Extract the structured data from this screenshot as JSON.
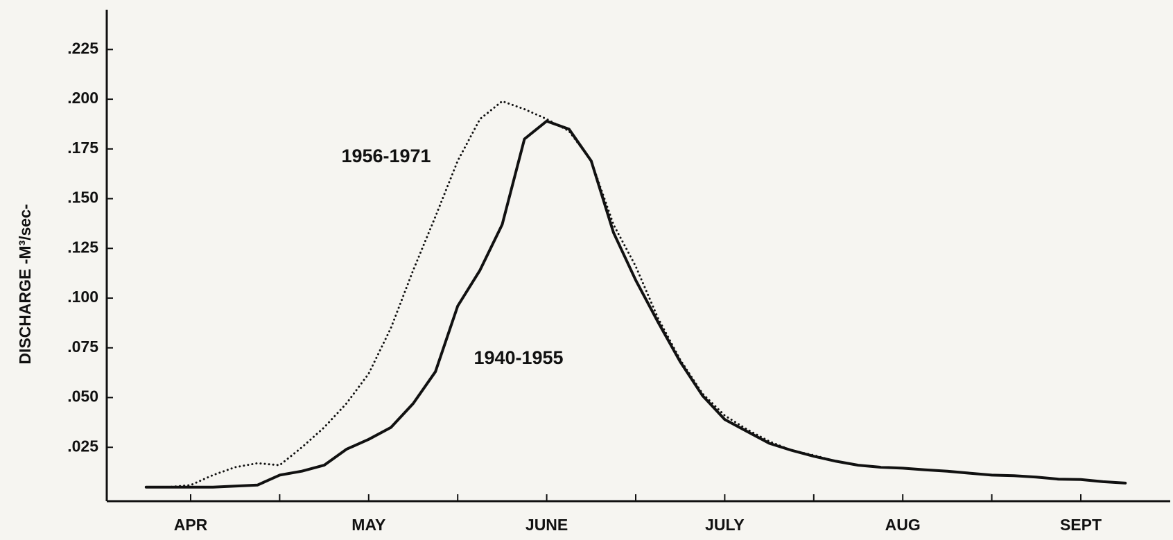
{
  "chart_data": {
    "type": "line",
    "y_label": "DISCHARGE  -M³/sec-",
    "categories": [
      null,
      null,
      "APR",
      null,
      null,
      null,
      null,
      null,
      null,
      null,
      "MAY",
      null,
      null,
      null,
      null,
      null,
      null,
      null,
      "JUNE",
      null,
      null,
      null,
      null,
      null,
      null,
      null,
      "JULY",
      null,
      null,
      null,
      null,
      null,
      null,
      null,
      "AUG",
      null,
      null,
      null,
      null,
      null,
      null,
      null,
      "SEPT",
      null,
      null
    ],
    "series": [
      {
        "name": "1940-1955",
        "color": "#111111",
        "style": "solid",
        "values": [
          0.005,
          0.005,
          0.005,
          0.005,
          0.0055,
          0.006,
          0.011,
          0.013,
          0.016,
          0.024,
          0.029,
          0.035,
          0.047,
          0.063,
          0.096,
          0.114,
          0.137,
          0.18,
          0.189,
          0.185,
          0.169,
          0.133,
          0.109,
          0.088,
          0.068,
          0.051,
          0.039,
          0.033,
          0.027,
          0.0235,
          0.0205,
          0.018,
          0.016,
          0.015,
          0.0145,
          0.0137,
          0.013,
          0.012,
          0.011,
          0.0107,
          0.01,
          0.009,
          0.0088,
          0.0077,
          0.007
        ]
      },
      {
        "name": "1956-1971",
        "color": "#111111",
        "style": "dotted",
        "values": [
          0.005,
          0.005,
          0.006,
          0.011,
          0.015,
          0.017,
          0.016,
          0.025,
          0.035,
          0.047,
          0.062,
          0.085,
          0.114,
          0.141,
          0.169,
          0.19,
          0.199,
          0.195,
          0.19,
          0.184,
          0.169,
          0.137,
          0.116,
          0.09,
          0.069,
          0.052,
          0.041,
          0.034,
          0.028,
          0.0235,
          0.021,
          0.018,
          null,
          null,
          null,
          null,
          null,
          null,
          null,
          null,
          null,
          null,
          null,
          null,
          null
        ]
      }
    ],
    "ylim": [
      0,
      0.245
    ],
    "yticks": [
      {
        "value": 0.025,
        "label": ".025"
      },
      {
        "value": 0.05,
        "label": ".050"
      },
      {
        "value": 0.075,
        "label": ".075"
      },
      {
        "value": 0.1,
        "label": ".100"
      },
      {
        "value": 0.125,
        "label": ".125"
      },
      {
        "value": 0.15,
        "label": ".150"
      },
      {
        "value": 0.175,
        "label": ".175"
      },
      {
        "value": 0.2,
        "label": ".200"
      },
      {
        "value": 0.225,
        "label": ".225"
      }
    ],
    "grid": false
  }
}
